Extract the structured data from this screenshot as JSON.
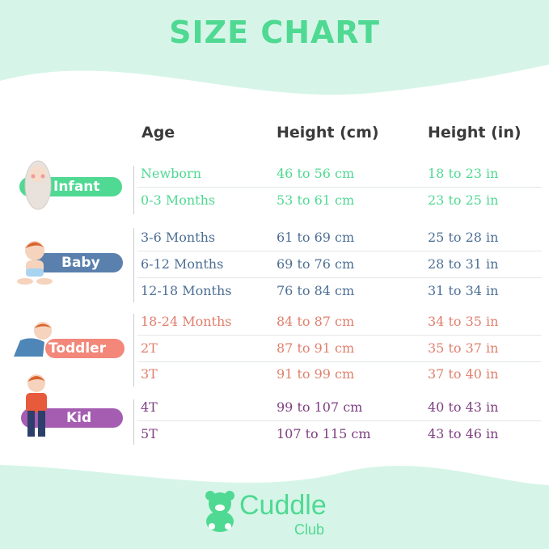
{
  "title": "SIZE CHART",
  "headers": {
    "age": "Age",
    "height_cm": "Height (cm)",
    "height_in": "Height (in)"
  },
  "colors": {
    "infant": "#4fd992",
    "baby": "#4d6f95",
    "toddler": "#e07f6c",
    "kid": "#7c3f80",
    "kid_badge": "#a45db0",
    "background": "#d6f5e8"
  },
  "groups": [
    {
      "label": "Infant",
      "rows": [
        {
          "age": "Newborn",
          "cm": "46 to 56 cm",
          "in": "18 to 23 in"
        },
        {
          "age": "0-3 Months",
          "cm": "53 to 61 cm",
          "in": "23 to 25 in"
        }
      ]
    },
    {
      "label": "Baby",
      "rows": [
        {
          "age": "3-6 Months",
          "cm": "61 to 69 cm",
          "in": "25 to 28 in"
        },
        {
          "age": "6-12 Months",
          "cm": "69 to 76 cm",
          "in": "28 to 31 in"
        },
        {
          "age": "12-18 Months",
          "cm": "76 to 84 cm",
          "in": "31 to 34 in"
        }
      ]
    },
    {
      "label": "Toddler",
      "rows": [
        {
          "age": "18-24 Months",
          "cm": "84 to 87 cm",
          "in": "34 to 35 in"
        },
        {
          "age": "2T",
          "cm": "87 to 91 cm",
          "in": "35 to 37 in"
        },
        {
          "age": "3T",
          "cm": "91 to 99 cm",
          "in": "37 to 40 in"
        }
      ]
    },
    {
      "label": "Kid",
      "rows": [
        {
          "age": "4T",
          "cm": "99 to 107 cm",
          "in": "40 to 43 in"
        },
        {
          "age": "5T",
          "cm": "107 to 115 cm",
          "in": "43 to 46 in"
        }
      ]
    }
  ],
  "brand": {
    "name": "Cuddle",
    "sub": "Club",
    "icon": "teddy-bear-icon"
  }
}
